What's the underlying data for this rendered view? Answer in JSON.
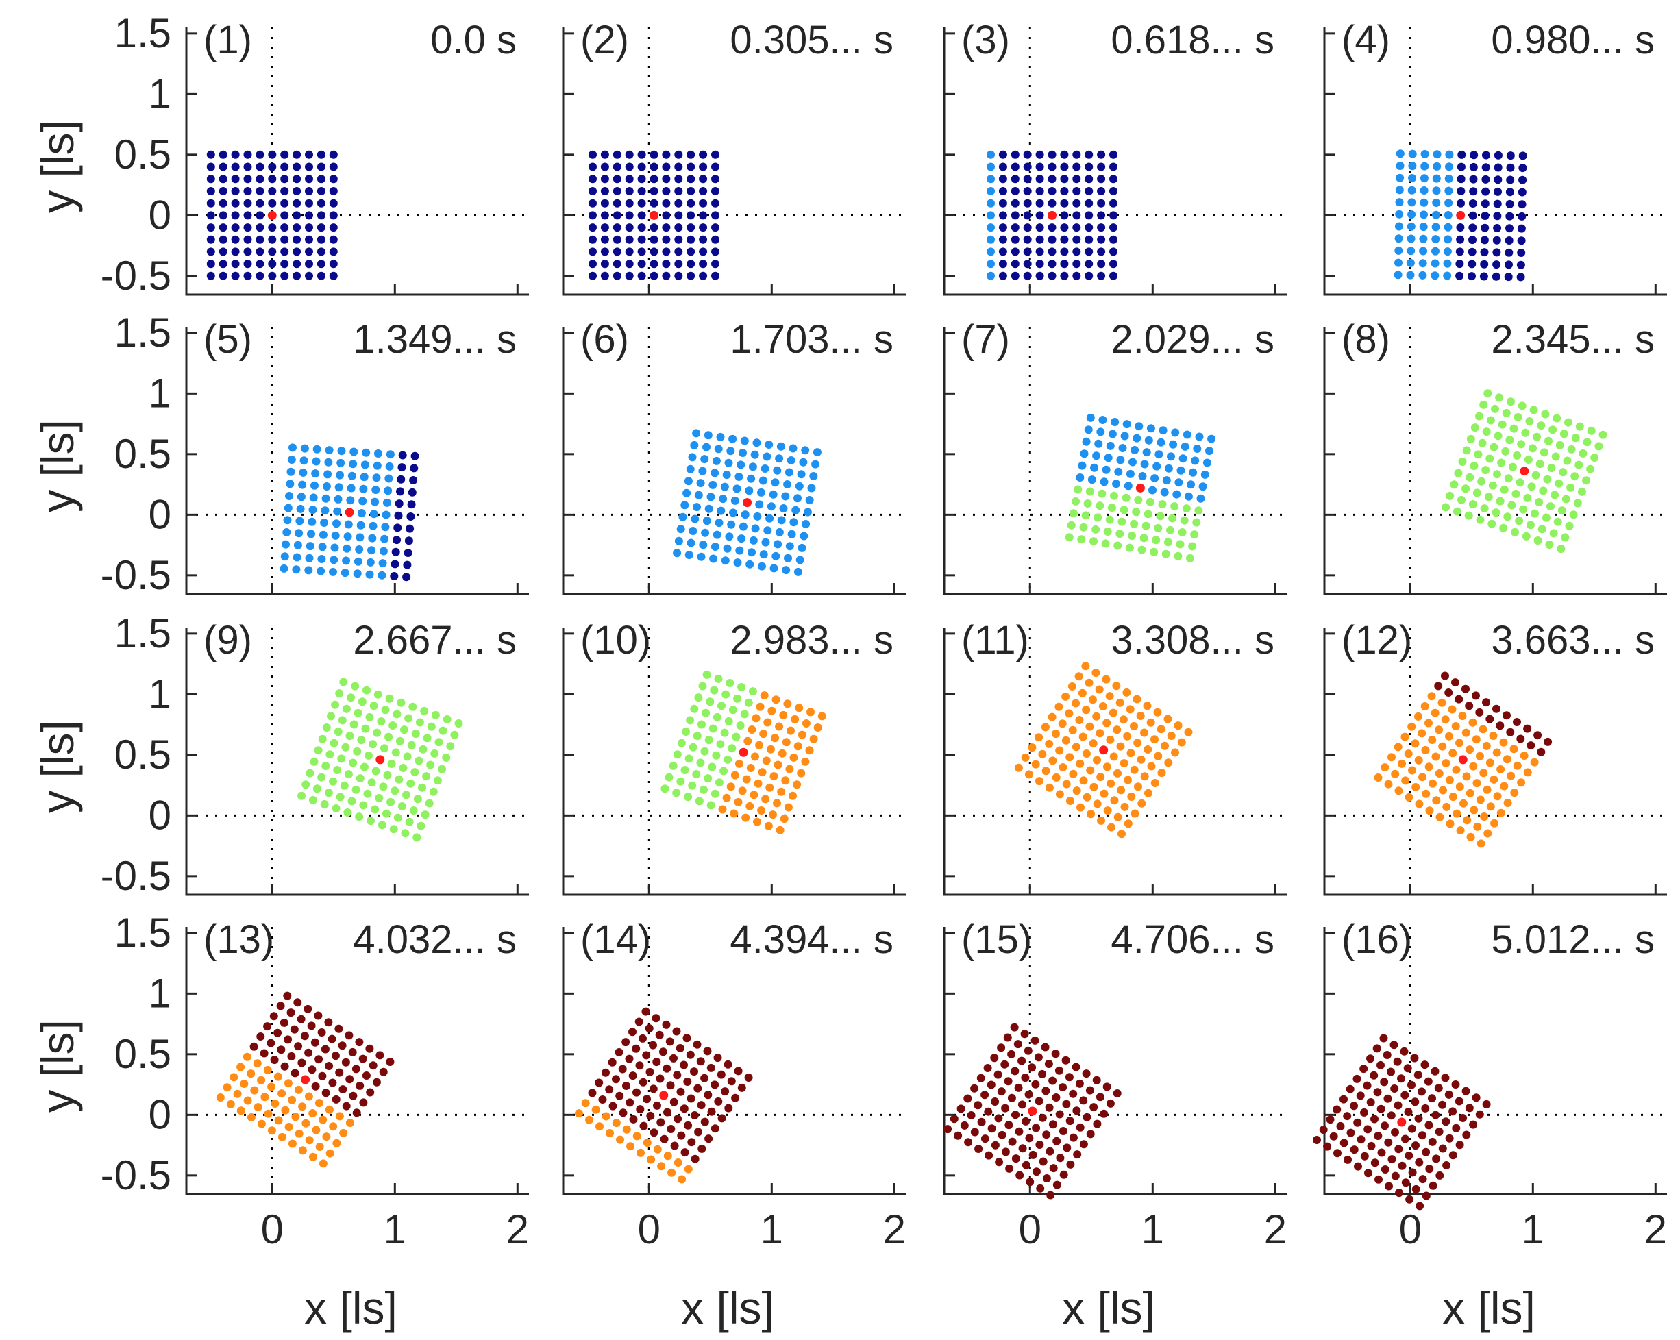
{
  "chart_data": {
    "type": "scatter",
    "description": "4x4 grid of scatter panels showing an 11x11 grid of points (side 1 ls) translating and rotating over time; point colour encodes a per-point state; centre point in red",
    "xlabel": "x [ls]",
    "ylabel": "y [ls]",
    "xlim": [
      -0.7,
      2.1
    ],
    "ylim": [
      -0.65,
      1.55
    ],
    "xticks": [
      "0",
      "1",
      "2"
    ],
    "yticks": [
      "1.5",
      "1",
      "0.5",
      "0",
      "-0.5"
    ],
    "xtick_values": [
      0,
      1,
      2
    ],
    "ytick_values": [
      1.5,
      1,
      0.5,
      0,
      -0.5
    ],
    "grid": false,
    "reference_lines": [
      "x = 0 (dotted)",
      "y = 0 (dotted)"
    ],
    "grid_points_per_side": 11,
    "square_side": 1.0,
    "state_colors": {
      "dark_blue": "#0a0a8c",
      "light_blue": "#1e90f0",
      "light_green": "#8ff060",
      "orange": "#ff8c14",
      "dark_red": "#7a0a0a",
      "center": "#ff1a1a"
    },
    "panels": [
      {
        "label": "(1)",
        "time": "0.0 s",
        "center": [
          0.0,
          0.0
        ],
        "angle_deg": 0,
        "pattern": "uniform",
        "colors": [
          "dark_blue"
        ]
      },
      {
        "label": "(2)",
        "time": "0.305... s",
        "center": [
          0.04,
          0.0
        ],
        "angle_deg": 0,
        "pattern": "uniform",
        "colors": [
          "dark_blue"
        ]
      },
      {
        "label": "(3)",
        "time": "0.618... s",
        "center": [
          0.18,
          0.0
        ],
        "angle_deg": 0,
        "pattern": "columns",
        "split": 1,
        "colors": [
          "light_blue",
          "dark_blue"
        ]
      },
      {
        "label": "(4)",
        "time": "0.980... s",
        "center": [
          0.41,
          0.0
        ],
        "angle_deg": -1,
        "pattern": "columns",
        "split": 5,
        "colors": [
          "light_blue",
          "dark_blue"
        ]
      },
      {
        "label": "(5)",
        "time": "1.349... s",
        "center": [
          0.63,
          0.02
        ],
        "angle_deg": -4,
        "pattern": "columns",
        "split": 9,
        "colors": [
          "light_blue",
          "dark_blue"
        ]
      },
      {
        "label": "(6)",
        "time": "1.703... s",
        "center": [
          0.8,
          0.1
        ],
        "angle_deg": -9,
        "pattern": "uniform",
        "colors": [
          "light_blue"
        ]
      },
      {
        "label": "(7)",
        "time": "2.029... s",
        "center": [
          0.9,
          0.22
        ],
        "angle_deg": -10,
        "pattern": "rows",
        "split": 5,
        "colors": [
          "light_green",
          "light_blue"
        ]
      },
      {
        "label": "(8)",
        "time": "2.345... s",
        "center": [
          0.93,
          0.36
        ],
        "angle_deg": -20,
        "pattern": "uniform",
        "colors": [
          "light_green"
        ]
      },
      {
        "label": "(9)",
        "time": "2.667... s",
        "center": [
          0.88,
          0.46
        ],
        "angle_deg": -20,
        "pattern": "uniform",
        "colors": [
          "light_green"
        ]
      },
      {
        "label": "(10)",
        "time": "2.983... s",
        "center": [
          0.77,
          0.52
        ],
        "angle_deg": -20,
        "pattern": "columns",
        "split": 5,
        "colors": [
          "light_green",
          "orange"
        ]
      },
      {
        "label": "(11)",
        "time": "3.308... s",
        "center": [
          0.6,
          0.54
        ],
        "angle_deg": -33,
        "pattern": "uniform",
        "colors": [
          "orange"
        ]
      },
      {
        "label": "(12)",
        "time": "3.663... s",
        "center": [
          0.43,
          0.46
        ],
        "angle_deg": -33,
        "pattern": "rows",
        "split": 9,
        "colors": [
          "orange",
          "dark_red"
        ]
      },
      {
        "label": "(13)",
        "time": "4.032... s",
        "center": [
          0.27,
          0.29
        ],
        "angle_deg": -33,
        "pattern": "rows",
        "split": 5,
        "colors": [
          "orange",
          "dark_red"
        ]
      },
      {
        "label": "(14)",
        "time": "4.394... s",
        "center": [
          0.12,
          0.16
        ],
        "angle_deg": -33,
        "pattern": "rows",
        "split": 2,
        "colors": [
          "orange",
          "dark_red"
        ]
      },
      {
        "label": "(15)",
        "time": "4.706... s",
        "center": [
          0.02,
          0.03
        ],
        "angle_deg": -33,
        "pattern": "uniform",
        "colors": [
          "dark_red"
        ]
      },
      {
        "label": "(16)",
        "time": "5.012... s",
        "center": [
          -0.07,
          -0.06
        ],
        "angle_deg": -33,
        "pattern": "uniform",
        "colors": [
          "dark_red"
        ]
      }
    ]
  }
}
